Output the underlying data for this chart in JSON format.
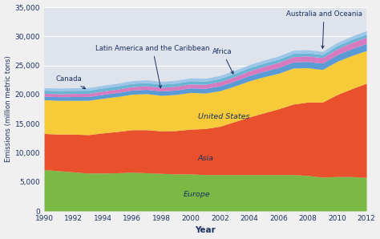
{
  "years": [
    1990,
    1991,
    1992,
    1993,
    1994,
    1995,
    1996,
    1997,
    1998,
    1999,
    2000,
    2001,
    2002,
    2003,
    2004,
    2005,
    2006,
    2007,
    2008,
    2009,
    2010,
    2011,
    2012
  ],
  "Europe": [
    7100,
    6900,
    6700,
    6500,
    6500,
    6550,
    6650,
    6550,
    6450,
    6350,
    6350,
    6250,
    6250,
    6250,
    6250,
    6250,
    6250,
    6250,
    6100,
    5800,
    5900,
    5900,
    5750
  ],
  "Asia": [
    6200,
    6300,
    6500,
    6600,
    6900,
    7100,
    7300,
    7400,
    7300,
    7450,
    7700,
    7900,
    8300,
    9100,
    9900,
    10600,
    11300,
    12100,
    12600,
    12900,
    14100,
    15100,
    16200
  ],
  "United_States": [
    5800,
    5800,
    5800,
    5900,
    5950,
    6000,
    6100,
    6200,
    6100,
    6200,
    6300,
    6100,
    6100,
    6100,
    6200,
    6200,
    6100,
    6200,
    5900,
    5600,
    5700,
    5700,
    5600
  ],
  "Latin_America": [
    600,
    620,
    640,
    650,
    670,
    690,
    710,
    730,
    750,
    770,
    790,
    810,
    840,
    870,
    910,
    950,
    990,
    1040,
    1080,
    1090,
    1140,
    1180,
    1220
  ],
  "Africa": [
    500,
    515,
    530,
    545,
    560,
    575,
    595,
    610,
    625,
    645,
    665,
    690,
    720,
    760,
    800,
    840,
    880,
    920,
    950,
    960,
    1010,
    1050,
    1090
  ],
  "Canada": [
    530,
    535,
    535,
    535,
    545,
    550,
    560,
    555,
    545,
    545,
    555,
    545,
    545,
    550,
    550,
    550,
    545,
    545,
    535,
    515,
    535,
    545,
    535
  ],
  "Australia_Oceania": [
    430,
    435,
    445,
    445,
    455,
    460,
    470,
    475,
    480,
    480,
    490,
    490,
    500,
    510,
    520,
    530,
    535,
    545,
    545,
    535,
    545,
    555,
    560
  ],
  "colors": {
    "Europe": "#7cb846",
    "Asia": "#e8512b",
    "United_States": "#f7ca3a",
    "Latin_America": "#5b9bd5",
    "Africa": "#d87abf",
    "Canada": "#6ab4d4",
    "Australia_Oceania": "#9dc6e8"
  },
  "ylabel": "Emissions (million metric tons)",
  "xlabel": "Year",
  "ylim": [
    0,
    35000
  ],
  "xlim": [
    1990,
    2012
  ],
  "bg_color": "#dfe3ec",
  "fig_bg_color": "#f0f0f0"
}
